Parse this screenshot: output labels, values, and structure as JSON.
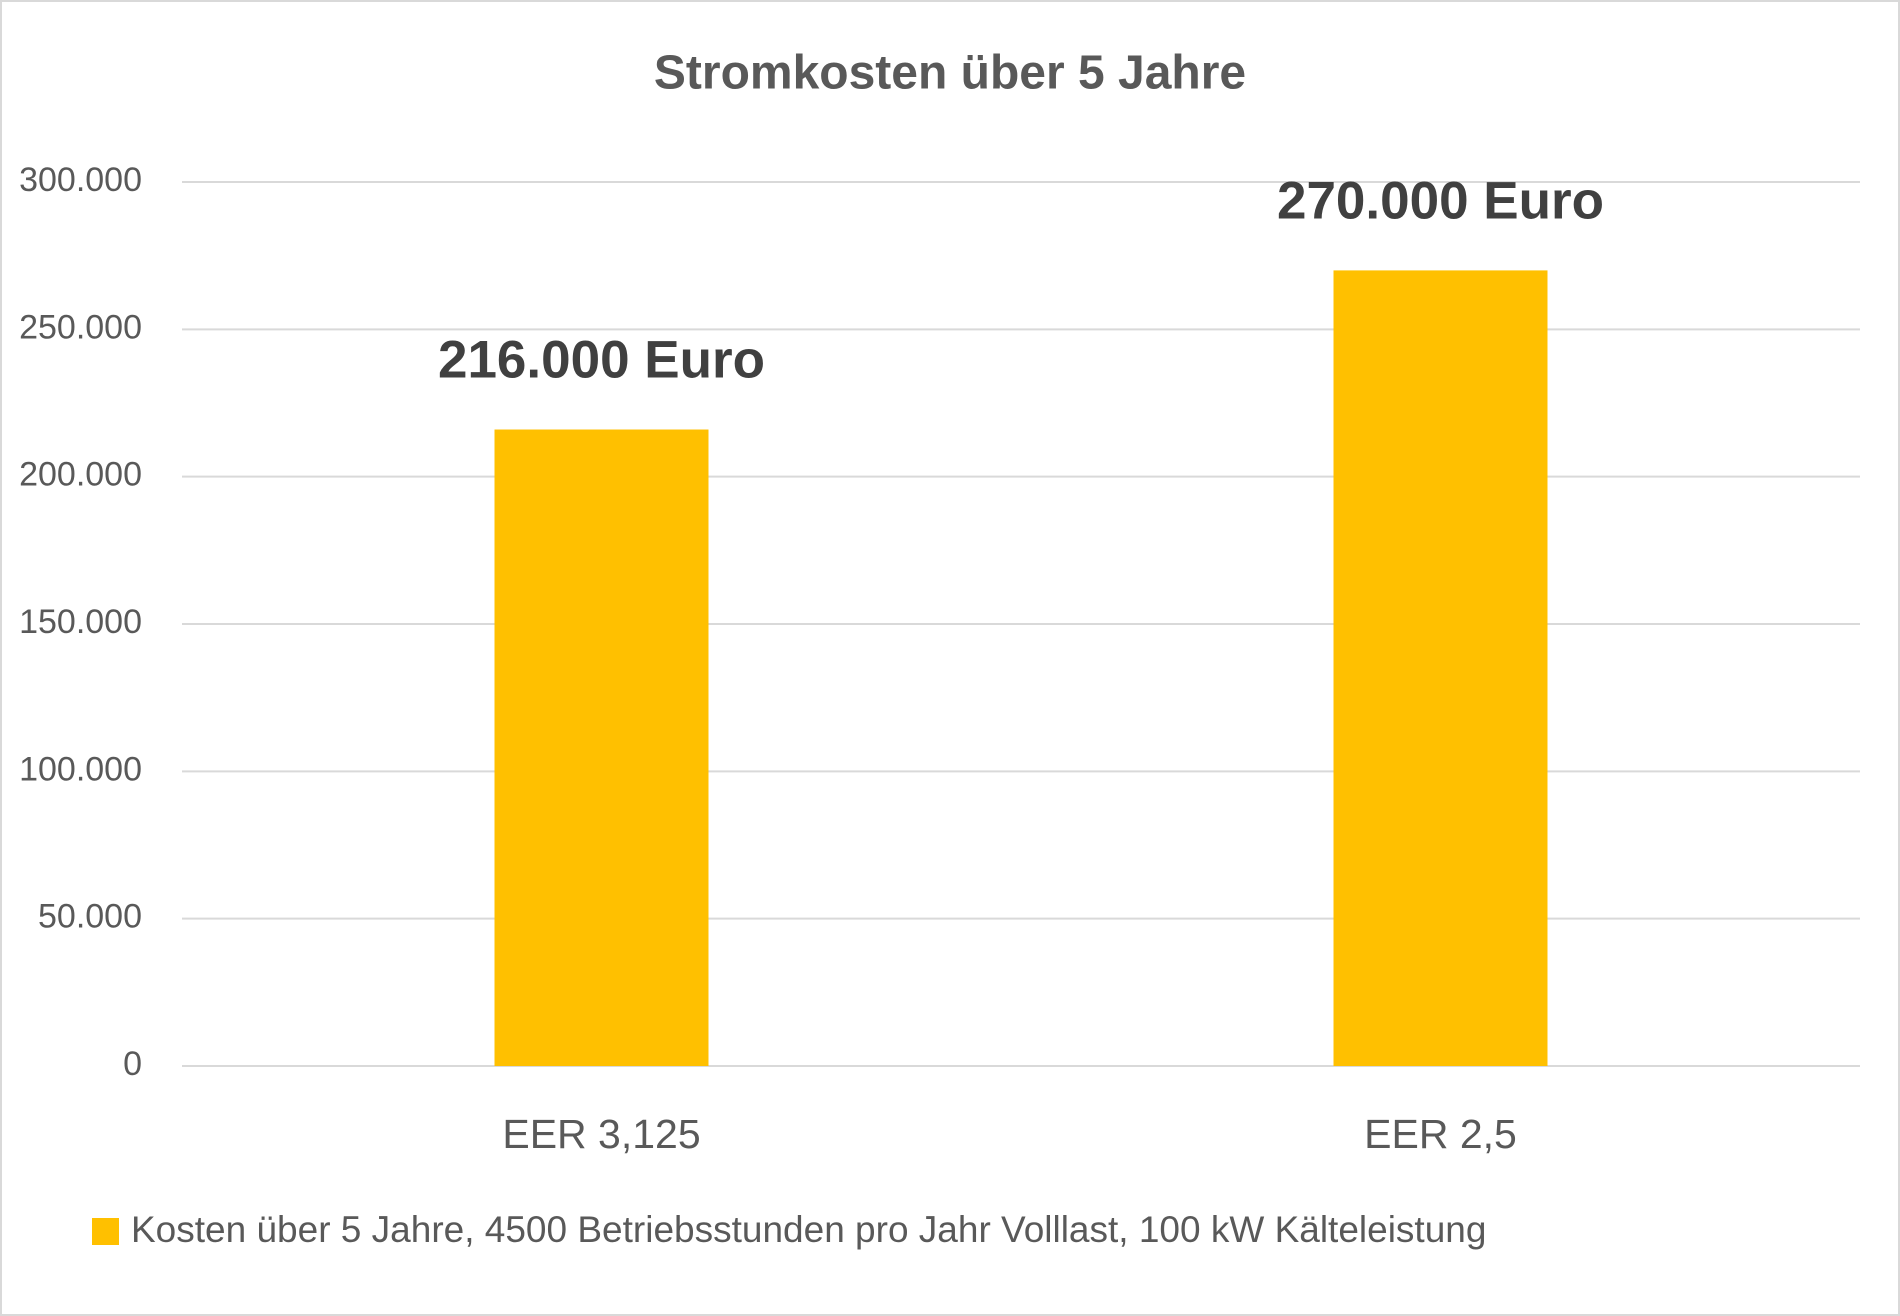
{
  "chart_data": {
    "type": "bar",
    "title": "Stromkosten über 5 Jahre",
    "categories": [
      "EER 3,125",
      "EER 2,5"
    ],
    "series": [
      {
        "name": "Kosten über 5 Jahre, 4500 Betriebsstunden pro Jahr Volllast, 100 kW Kälteleistung",
        "color": "#ffc000",
        "values": [
          216000,
          270000
        ],
        "value_labels": [
          "216.000 Euro",
          "270.000 Euro"
        ]
      }
    ],
    "ylim": [
      0,
      300000
    ],
    "yticks": [
      0,
      {
        "value": 50000,
        "label": "50.000"
      },
      {
        "value": 100000,
        "label": "100.000"
      },
      {
        "value": 150000,
        "label": "150.000"
      },
      {
        "value": 200000,
        "label": "200.000"
      },
      {
        "value": 250000,
        "label": "250.000"
      },
      {
        "value": 300000,
        "label": "300.000"
      }
    ],
    "grid": true,
    "legend": "bottom"
  }
}
